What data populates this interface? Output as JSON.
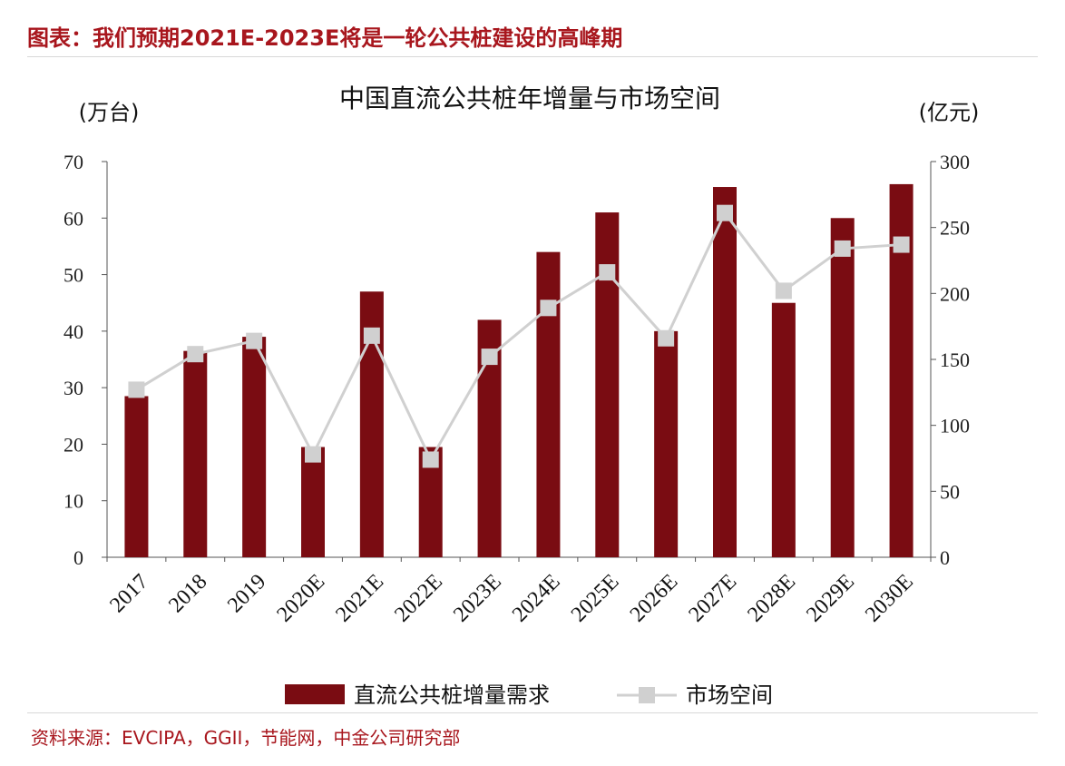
{
  "header": {
    "title": "图表：我们预期2021E-2023E将是一轮公共桩建设的高峰期"
  },
  "source": {
    "text": "资料来源：EVCIPA，GGII，节能网，中金公司研究部"
  },
  "chart_data": {
    "type": "bar",
    "title": "中国直流公共桩年增量与市场空间",
    "ylabel": "(万台)",
    "y2label": "(亿元)",
    "ylim": [
      0,
      70
    ],
    "y2lim": [
      0,
      300
    ],
    "yticks": [
      "0",
      "10",
      "20",
      "30",
      "40",
      "50",
      "60",
      "70"
    ],
    "y2ticks": [
      "0",
      "50",
      "100",
      "150",
      "200",
      "250",
      "300"
    ],
    "categories": [
      "2017",
      "2018",
      "2019",
      "2020E",
      "2021E",
      "2022E",
      "2023E",
      "2024E",
      "2025E",
      "2026E",
      "2027E",
      "2028E",
      "2029E",
      "2030E"
    ],
    "series": [
      {
        "name": "直流公共桩增量需求",
        "type": "bar",
        "axis": "left",
        "color": "#7a0c12",
        "values": [
          28.5,
          36.5,
          39,
          19.5,
          47,
          19.5,
          42,
          54,
          61,
          40,
          65.5,
          45,
          60,
          66
        ]
      },
      {
        "name": "市场空间",
        "type": "line",
        "axis": "right",
        "color": "#d0d0d0",
        "values": [
          127,
          154,
          164,
          78,
          168,
          74,
          152,
          189,
          216,
          166,
          261,
          202,
          234,
          237
        ]
      }
    ],
    "legend_position": "bottom",
    "grid": false
  }
}
